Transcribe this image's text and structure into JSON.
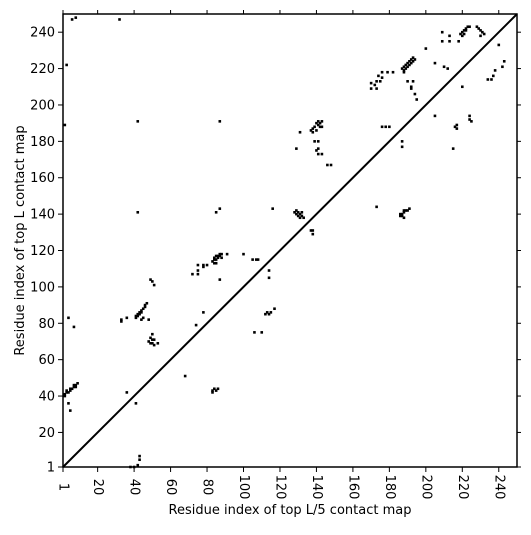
{
  "chart_data": {
    "type": "scatter",
    "title": "",
    "xlabel": "Residue index of top L/5 contact map",
    "ylabel": "Residue index of top L contact map",
    "xlim": [
      1,
      250
    ],
    "ylim": [
      1,
      250
    ],
    "x_ticks": [
      1,
      20,
      40,
      60,
      80,
      100,
      120,
      140,
      160,
      180,
      200,
      220,
      240
    ],
    "y_ticks": [
      1,
      20,
      40,
      60,
      80,
      100,
      120,
      140,
      160,
      180,
      200,
      220,
      240
    ],
    "x_tick_rotation_deg": 90,
    "grid": false,
    "legend": "none",
    "marker": "square",
    "marker_color": "#000000",
    "diagonal_line": {
      "from": [
        1,
        1
      ],
      "to": [
        250,
        250
      ],
      "color": "#000000"
    },
    "series": [
      {
        "role": "upper-triangle",
        "points": [
          [
            6,
            247
          ],
          [
            8,
            248
          ],
          [
            32,
            247
          ],
          [
            3,
            222
          ],
          [
            2,
            189
          ],
          [
            42,
            191
          ],
          [
            87,
            191
          ],
          [
            42,
            141
          ],
          [
            85,
            141
          ],
          [
            87,
            143
          ],
          [
            116,
            143
          ],
          [
            2,
            40
          ],
          [
            2,
            41
          ],
          [
            3,
            42
          ],
          [
            3,
            43
          ],
          [
            4,
            42
          ],
          [
            5,
            43
          ],
          [
            5,
            44
          ],
          [
            6,
            44
          ],
          [
            7,
            45
          ],
          [
            7,
            46
          ],
          [
            8,
            45
          ],
          [
            8,
            46
          ],
          [
            9,
            47
          ],
          [
            4,
            83
          ],
          [
            7,
            78
          ],
          [
            33,
            81
          ],
          [
            33,
            82
          ],
          [
            36,
            83
          ],
          [
            41,
            83
          ],
          [
            41,
            84
          ],
          [
            42,
            84
          ],
          [
            42,
            85
          ],
          [
            43,
            85
          ],
          [
            43,
            86
          ],
          [
            44,
            86
          ],
          [
            44,
            87
          ],
          [
            45,
            88
          ],
          [
            46,
            89
          ],
          [
            46,
            90
          ],
          [
            47,
            91
          ],
          [
            48,
            82
          ],
          [
            45,
            83
          ],
          [
            44,
            82
          ],
          [
            49,
            104
          ],
          [
            50,
            103
          ],
          [
            51,
            101
          ],
          [
            72,
            107
          ],
          [
            75,
            107
          ],
          [
            75,
            109
          ],
          [
            75,
            112
          ],
          [
            78,
            111
          ],
          [
            78,
            112
          ],
          [
            80,
            112
          ],
          [
            78,
            86
          ],
          [
            83,
            114
          ],
          [
            84,
            115
          ],
          [
            84,
            116
          ],
          [
            85,
            115
          ],
          [
            85,
            117
          ],
          [
            86,
            116
          ],
          [
            86,
            117
          ],
          [
            87,
            117
          ],
          [
            87,
            118
          ],
          [
            88,
            118
          ],
          [
            88,
            116
          ],
          [
            84,
            113
          ],
          [
            85,
            113
          ],
          [
            91,
            118
          ],
          [
            100,
            118
          ],
          [
            105,
            115
          ],
          [
            107,
            115
          ],
          [
            108,
            115
          ],
          [
            114,
            105
          ],
          [
            114,
            109
          ],
          [
            117,
            88
          ],
          [
            115,
            86
          ],
          [
            113,
            86
          ],
          [
            112,
            85
          ],
          [
            114,
            85
          ],
          [
            129,
            176
          ],
          [
            131,
            185
          ],
          [
            141,
            191
          ],
          [
            141,
            189
          ],
          [
            142,
            188
          ],
          [
            142,
            190
          ],
          [
            143,
            191
          ],
          [
            143,
            188
          ],
          [
            140,
            186
          ],
          [
            138,
            187
          ],
          [
            137,
            186
          ],
          [
            139,
            188
          ],
          [
            138,
            185
          ],
          [
            140,
            190
          ],
          [
            139,
            180
          ],
          [
            141,
            180
          ],
          [
            141,
            176
          ],
          [
            140,
            175
          ],
          [
            141,
            173
          ],
          [
            143,
            173
          ],
          [
            146,
            167
          ],
          [
            148,
            167
          ],
          [
            128,
            141
          ],
          [
            129,
            140
          ],
          [
            130,
            139
          ],
          [
            131,
            138
          ],
          [
            130,
            141
          ],
          [
            132,
            139
          ],
          [
            129,
            142
          ],
          [
            131,
            140
          ],
          [
            133,
            138
          ],
          [
            132,
            141
          ],
          [
            137,
            131
          ],
          [
            138,
            129
          ],
          [
            138,
            131
          ],
          [
            170,
            209
          ],
          [
            170,
            212
          ],
          [
            172,
            211
          ],
          [
            173,
            213
          ],
          [
            173,
            209
          ],
          [
            175,
            213
          ],
          [
            174,
            216
          ],
          [
            176,
            215
          ],
          [
            176,
            218
          ],
          [
            179,
            218
          ],
          [
            182,
            218
          ],
          [
            176,
            188
          ],
          [
            178,
            188
          ],
          [
            180,
            188
          ],
          [
            187,
            220
          ],
          [
            188,
            219
          ],
          [
            188,
            221
          ],
          [
            189,
            222
          ],
          [
            189,
            220
          ],
          [
            190,
            223
          ],
          [
            190,
            221
          ],
          [
            191,
            224
          ],
          [
            191,
            222
          ],
          [
            192,
            225
          ],
          [
            193,
            226
          ],
          [
            194,
            225
          ],
          [
            192,
            223
          ],
          [
            193,
            224
          ],
          [
            188,
            218
          ],
          [
            190,
            213
          ],
          [
            193,
            213
          ],
          [
            192,
            210
          ],
          [
            192,
            209
          ],
          [
            195,
            203
          ],
          [
            194,
            206
          ],
          [
            200,
            231
          ],
          [
            205,
            223
          ],
          [
            205,
            194
          ],
          [
            209,
            240
          ],
          [
            209,
            235
          ],
          [
            210,
            221
          ],
          [
            212,
            220
          ],
          [
            213,
            235
          ],
          [
            213,
            238
          ],
          [
            218,
            235
          ],
          [
            219,
            239
          ],
          [
            220,
            240
          ],
          [
            220,
            238
          ],
          [
            221,
            241
          ],
          [
            221,
            239
          ],
          [
            222,
            242
          ],
          [
            223,
            243
          ],
          [
            224,
            243
          ],
          [
            222,
            241
          ],
          [
            228,
            243
          ],
          [
            229,
            242
          ],
          [
            230,
            241
          ],
          [
            231,
            240
          ],
          [
            232,
            239
          ],
          [
            230,
            238
          ],
          [
            216,
            188
          ],
          [
            217,
            189
          ],
          [
            217,
            187
          ],
          [
            220,
            210
          ],
          [
            224,
            194
          ],
          [
            224,
            192
          ],
          [
            225,
            191
          ],
          [
            215,
            176
          ],
          [
            234,
            214
          ],
          [
            236,
            214
          ],
          [
            237,
            216
          ],
          [
            238,
            219
          ],
          [
            240,
            233
          ],
          [
            242,
            221
          ],
          [
            243,
            224
          ]
        ]
      },
      {
        "role": "lower-triangle",
        "points": [
          [
            4,
            36
          ],
          [
            5,
            32
          ],
          [
            38,
            1
          ],
          [
            40,
            1
          ],
          [
            42,
            2
          ],
          [
            43,
            5
          ],
          [
            43,
            7
          ],
          [
            36,
            42
          ],
          [
            41,
            36
          ],
          [
            48,
            70
          ],
          [
            49,
            69
          ],
          [
            50,
            69
          ],
          [
            50,
            71
          ],
          [
            51,
            71
          ],
          [
            49,
            72
          ],
          [
            50,
            74
          ],
          [
            53,
            69
          ],
          [
            51,
            68
          ],
          [
            68,
            51
          ],
          [
            74,
            79
          ],
          [
            83,
            42
          ],
          [
            83,
            43
          ],
          [
            84,
            44
          ],
          [
            85,
            43
          ],
          [
            86,
            44
          ],
          [
            87,
            104
          ],
          [
            106,
            75
          ],
          [
            110,
            75
          ],
          [
            173,
            144
          ],
          [
            186,
            139
          ],
          [
            187,
            140
          ],
          [
            188,
            141
          ],
          [
            189,
            142
          ],
          [
            190,
            142
          ],
          [
            191,
            143
          ],
          [
            188,
            138
          ],
          [
            187,
            139
          ],
          [
            186,
            140
          ],
          [
            188,
            142
          ],
          [
            187,
            177
          ],
          [
            187,
            180
          ]
        ]
      }
    ]
  }
}
